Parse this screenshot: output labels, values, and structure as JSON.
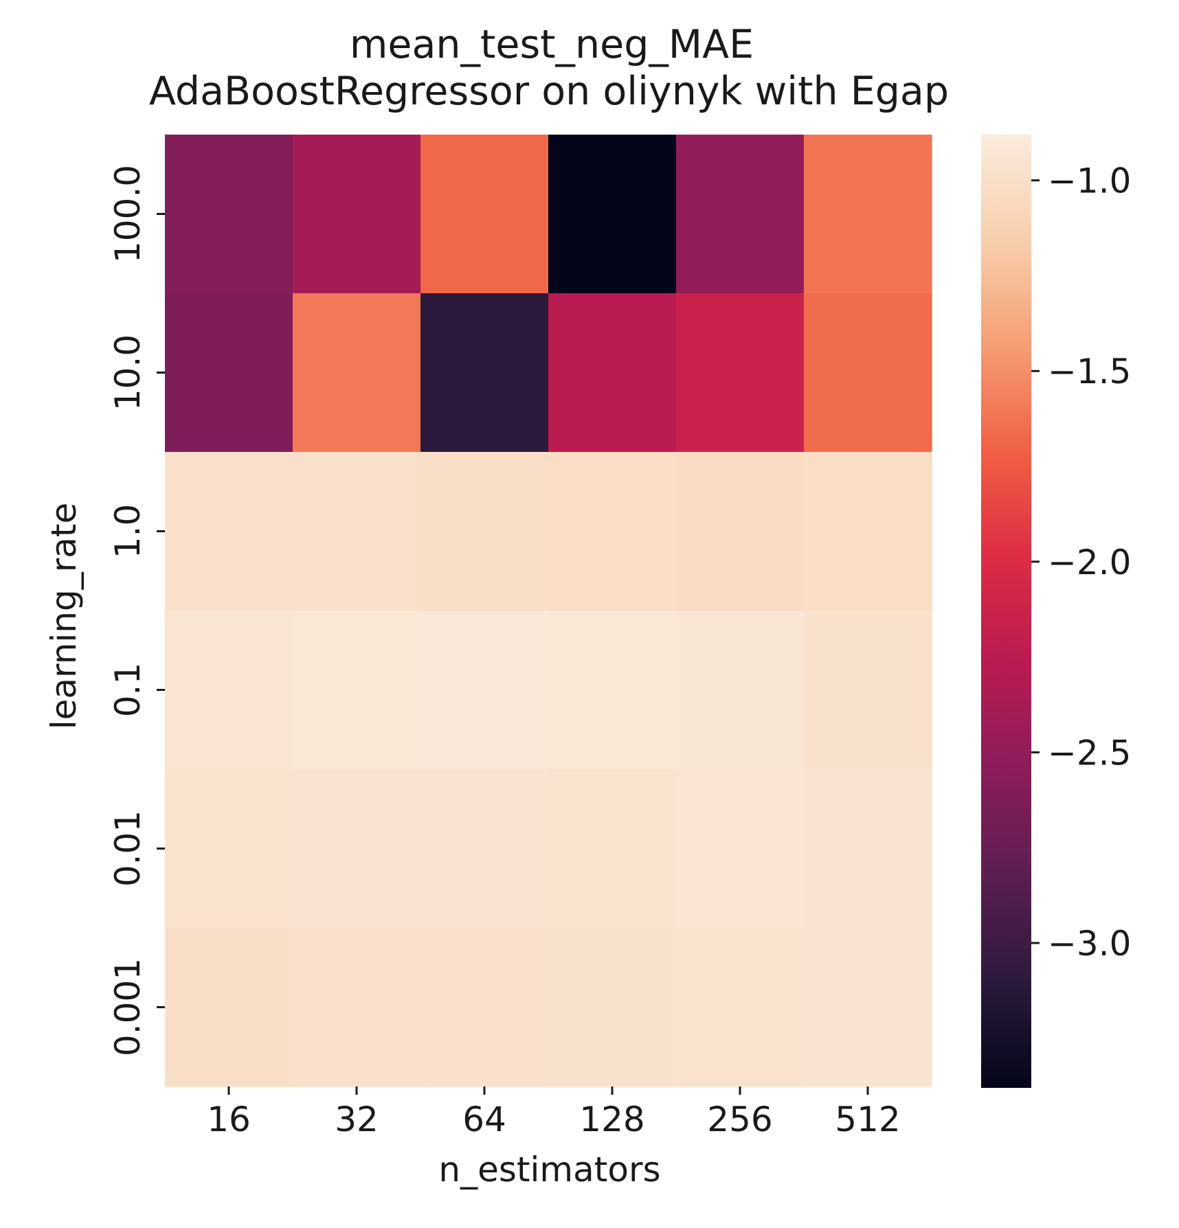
{
  "chart_data": {
    "type": "heatmap",
    "title_lines": [
      "mean_test_neg_MAE",
      "AdaBoostRegressor on oliynyk with Egap"
    ],
    "xlabel": "n_estimators",
    "ylabel": "learning_rate",
    "x_categories": [
      "16",
      "32",
      "64",
      "128",
      "256",
      "512"
    ],
    "y_categories": [
      "100.0",
      "10.0",
      "1.0",
      "0.1",
      "0.01",
      "0.001"
    ],
    "values": [
      [
        -2.6,
        -2.4,
        -1.68,
        -3.38,
        -2.5,
        -1.62
      ],
      [
        -2.62,
        -1.6,
        -3.1,
        -2.25,
        -2.15,
        -1.66
      ],
      [
        -0.98,
        -0.99,
        -1.01,
        -1.02,
        -1.03,
        -1.02
      ],
      [
        -0.94,
        -0.92,
        -0.91,
        -0.92,
        -0.93,
        -0.97
      ],
      [
        -0.96,
        -0.95,
        -0.95,
        -0.96,
        -0.94,
        -0.95
      ],
      [
        -1.0,
        -0.99,
        -0.98,
        -0.97,
        -0.96,
        -0.95
      ]
    ],
    "colorbar": {
      "range": [
        -3.38,
        -0.88
      ],
      "ticks": [
        -1.0,
        -1.5,
        -2.0,
        -2.5,
        -3.0
      ],
      "tick_labels": [
        "−1.0",
        "−1.5",
        "−2.0",
        "−2.5",
        "−3.0"
      ],
      "colormap": "rocket",
      "colormap_stops": [
        "#03051a",
        "#2b1a3b",
        "#5b1e51",
        "#8b1d5a",
        "#b81b51",
        "#dd2c45",
        "#f06043",
        "#f59d73",
        "#f8cfad",
        "#faebdd"
      ]
    }
  }
}
